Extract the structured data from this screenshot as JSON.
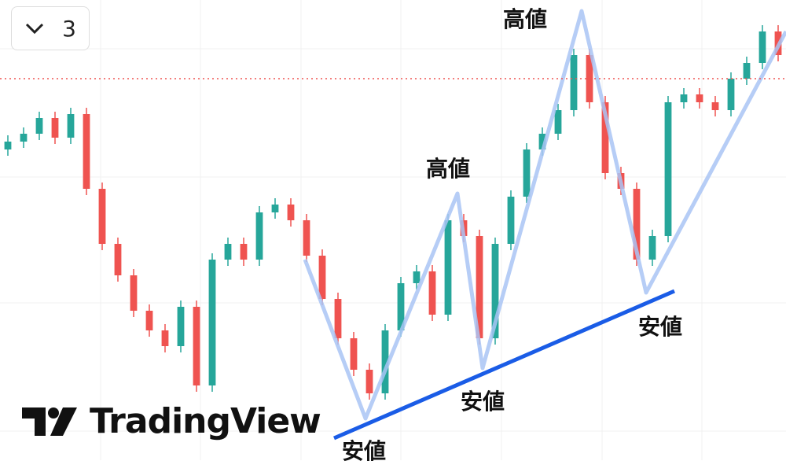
{
  "toolbar": {
    "interval": "3"
  },
  "logo": "TradingView",
  "labels": [
    "高値",
    "高値",
    "安値",
    "安値",
    "安値"
  ],
  "chart_data": {
    "type": "candlestick",
    "ylim": [
      0,
      600
    ],
    "price_line": 500,
    "up_color": "#26a69a",
    "down_color": "#ef5350",
    "open": [
      410,
      420,
      430,
      450,
      425,
      455,
      360,
      290,
      250,
      205,
      180,
      160,
      210,
      110,
      270,
      290,
      270,
      330,
      340,
      320,
      275,
      220,
      170,
      130,
      100,
      180,
      240,
      255,
      200,
      320,
      300,
      170,
      290,
      350,
      410,
      430,
      460,
      530,
      470,
      380,
      360,
      270,
      300,
      470,
      480,
      470,
      460,
      500,
      520,
      560
    ],
    "high": [
      428,
      438,
      458,
      458,
      463,
      463,
      368,
      298,
      258,
      213,
      188,
      218,
      218,
      278,
      298,
      298,
      338,
      348,
      348,
      328,
      283,
      228,
      178,
      138,
      188,
      248,
      263,
      263,
      328,
      328,
      308,
      298,
      358,
      418,
      438,
      468,
      538,
      538,
      478,
      388,
      368,
      308,
      478,
      488,
      488,
      478,
      508,
      528,
      568,
      568
    ],
    "low": [
      402,
      412,
      422,
      417,
      417,
      352,
      282,
      242,
      197,
      172,
      152,
      152,
      102,
      102,
      262,
      262,
      262,
      322,
      312,
      267,
      212,
      162,
      122,
      92,
      92,
      172,
      232,
      192,
      192,
      292,
      162,
      162,
      282,
      342,
      402,
      422,
      452,
      462,
      372,
      352,
      262,
      262,
      292,
      462,
      462,
      452,
      452,
      492,
      512,
      522
    ],
    "close": [
      420,
      430,
      450,
      425,
      455,
      360,
      290,
      250,
      205,
      180,
      160,
      210,
      110,
      270,
      290,
      270,
      330,
      340,
      320,
      275,
      220,
      170,
      130,
      100,
      180,
      240,
      255,
      200,
      320,
      300,
      170,
      290,
      350,
      410,
      430,
      460,
      530,
      470,
      380,
      360,
      270,
      300,
      470,
      480,
      470,
      460,
      500,
      520,
      560,
      530
    ]
  }
}
